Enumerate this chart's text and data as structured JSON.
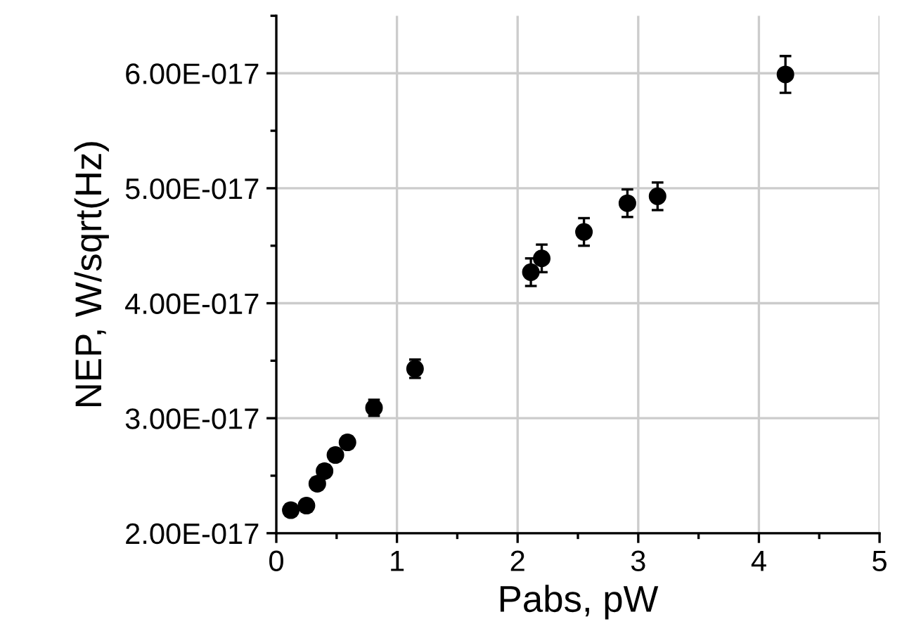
{
  "chart_data": {
    "type": "scatter",
    "xlabel": "Pabs, pW",
    "ylabel": "NEP, W/sqrt(Hz)",
    "x": [
      0.12,
      0.25,
      0.34,
      0.4,
      0.49,
      0.59,
      0.81,
      1.15,
      2.11,
      2.2,
      2.55,
      2.91,
      3.16,
      4.22
    ],
    "series": [
      {
        "color": "#000000",
        "values": [
          2.2e-17,
          2.24e-17,
          2.43e-17,
          2.54e-17,
          2.68e-17,
          2.79e-17,
          3.09e-17,
          3.43e-17,
          4.27e-17,
          4.39e-17,
          4.62e-17,
          4.87e-17,
          4.93e-17,
          5.99e-17
        ],
        "errors": [
          5e-19,
          5e-19,
          5e-19,
          5e-19,
          5e-19,
          5e-19,
          7e-19,
          8e-19,
          1.2e-18,
          1.2e-18,
          1.2e-18,
          1.2e-18,
          1.2e-18,
          1.6e-18
        ]
      }
    ],
    "marker": "circle",
    "xlim": [
      0,
      5
    ],
    "ylim": [
      2e-17,
      6.5e-17
    ],
    "xticks": [
      0,
      {
        "value": 0.5,
        "label": null
      },
      1,
      {
        "value": 1.5,
        "label": null
      },
      2,
      {
        "value": 2.5,
        "label": null
      },
      3,
      {
        "value": 3.5,
        "label": null
      },
      4,
      {
        "value": 4.5,
        "label": null
      },
      5
    ],
    "yticks": [
      {
        "value": 2e-17,
        "label": "2.00E-017"
      },
      {
        "value": 2.5e-17,
        "label": null
      },
      {
        "value": 3e-17,
        "label": "3.00E-017"
      },
      {
        "value": 3.5e-17,
        "label": null
      },
      {
        "value": 4e-17,
        "label": "4.00E-017"
      },
      {
        "value": 4.5e-17,
        "label": null
      },
      {
        "value": 5e-17,
        "label": "5.00E-017"
      },
      {
        "value": 5.5e-17,
        "label": null
      },
      {
        "value": 6e-17,
        "label": "6.00E-017"
      },
      {
        "value": 6.5e-17,
        "label": null
      }
    ],
    "grid": true
  }
}
